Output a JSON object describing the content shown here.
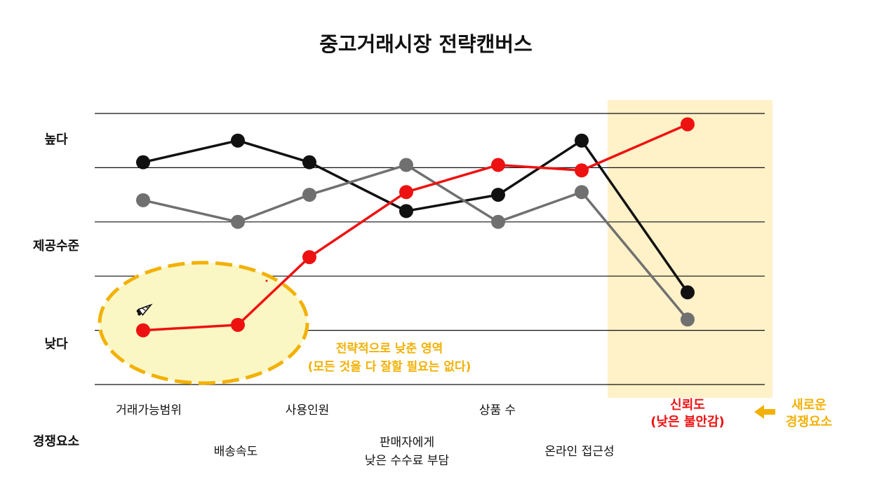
{
  "chart_data": {
    "type": "line",
    "title": "중고거래시장 전략캔버스",
    "y_axis": {
      "label": "제공수준",
      "high_label": "높다",
      "low_label": "낮다",
      "ylim": [
        0,
        5
      ],
      "grid": true
    },
    "x_axis": {
      "label": "경쟁요소"
    },
    "categories": [
      "거래가능범위",
      "배송속도",
      "사용인원",
      "판매자에게 낮은 수수료 부담",
      "상품 수",
      "온라인 접근성",
      "신뢰도 (낮은 불안감)"
    ],
    "category_text": {
      "c0": "거래가능범위",
      "c1": "배송속도",
      "c2": "사용인원",
      "c3_line1": "판매자에게",
      "c3_line2": "낮은 수수료 부담",
      "c4": "상품 수",
      "c5": "온라인 접근성",
      "c6_line1": "신뢰도",
      "c6_line2": "(낮은 불안감)"
    },
    "series": [
      {
        "color": "#111111",
        "values": [
          4.1,
          4.5,
          4.1,
          3.2,
          3.5,
          4.5,
          1.7
        ]
      },
      {
        "color": "#707070",
        "values": [
          3.4,
          3.0,
          3.5,
          4.05,
          3.0,
          3.55,
          1.2
        ]
      },
      {
        "color": "#ee1111",
        "values": [
          1.0,
          1.1,
          2.35,
          3.55,
          4.05,
          3.95,
          4.8
        ]
      }
    ],
    "annotations": {
      "low_zone_line1": "전략적으로 낮춘 영역",
      "low_zone_line2": "(모든 것을 다 잘할 필요는 없다)",
      "new_factor_line1": "새로운",
      "new_factor_line2": "경쟁요소"
    },
    "colors": {
      "highlight_band": "#fff1c8",
      "low_zone_fill": "#fbf7c4",
      "low_zone_border": "#f2b106",
      "accent_red": "#ee1111"
    },
    "icons": [
      "carrot-icon",
      "arrow-left-icon"
    ]
  }
}
